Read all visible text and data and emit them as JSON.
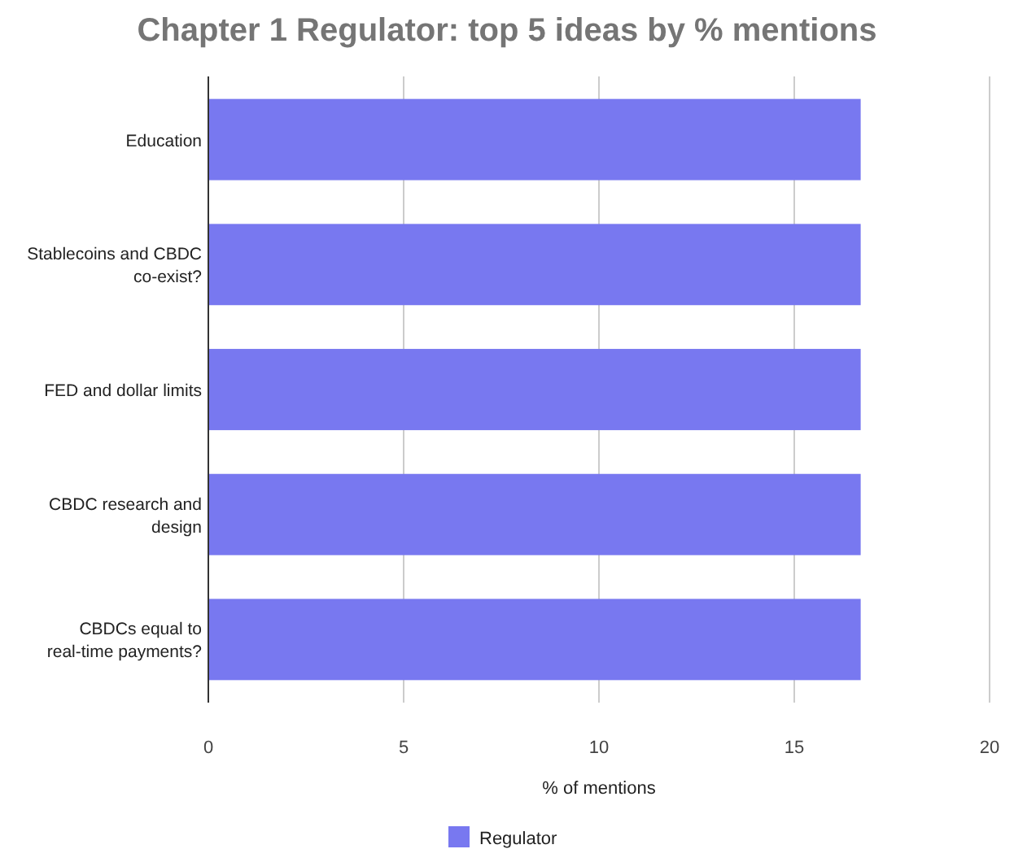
{
  "chart_data": {
    "type": "bar",
    "orientation": "horizontal",
    "title": "Chapter 1 Regulator: top 5 ideas by % mentions",
    "xlabel": "% of mentions",
    "categories": [
      "Education",
      "Stablecoins and CBDC co-exist?",
      "FED and dollar limits",
      "CBDC research and design",
      "CBDCs equal to real-time payments?"
    ],
    "series": [
      {
        "name": "Regulator",
        "color": "#7878f0",
        "values": [
          16.7,
          16.7,
          16.7,
          16.7,
          16.7
        ]
      }
    ],
    "xlim": [
      0,
      20
    ],
    "xticks": [
      0,
      5,
      10,
      15,
      20
    ],
    "grid": "x",
    "legend": "bottom"
  }
}
